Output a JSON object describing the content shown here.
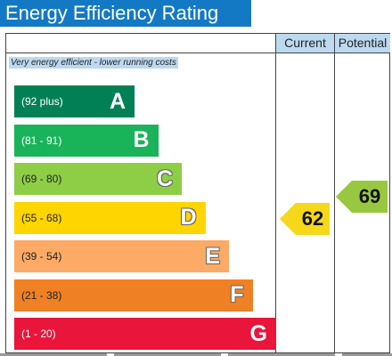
{
  "title": "Energy Efficiency Rating",
  "columns": {
    "current": "Current",
    "potential": "Potential"
  },
  "top_note": "Very energy efficient - lower running costs",
  "bands": [
    {
      "range": "(92 plus)",
      "letter": "A",
      "color": "#008054",
      "text_color": "#ffffff",
      "light": false
    },
    {
      "range": "(81 - 91)",
      "letter": "B",
      "color": "#19b459",
      "text_color": "#ffffff",
      "light": false
    },
    {
      "range": "(69 - 80)",
      "letter": "C",
      "color": "#8dce46",
      "text_color": "#222222",
      "light": true
    },
    {
      "range": "(55 - 68)",
      "letter": "D",
      "color": "#ffd500",
      "text_color": "#222222",
      "light": true
    },
    {
      "range": "(39 - 54)",
      "letter": "E",
      "color": "#fcaa65",
      "text_color": "#222222",
      "light": true
    },
    {
      "range": "(21 - 38)",
      "letter": "F",
      "color": "#ef8023",
      "text_color": "#222222",
      "light": true
    },
    {
      "range": "(1 - 20)",
      "letter": "G",
      "color": "#e9153b",
      "text_color": "#ffffff",
      "light": false
    }
  ],
  "current_rating": {
    "value": "62",
    "band": "D"
  },
  "potential_rating": {
    "value": "69",
    "band": "C"
  }
}
